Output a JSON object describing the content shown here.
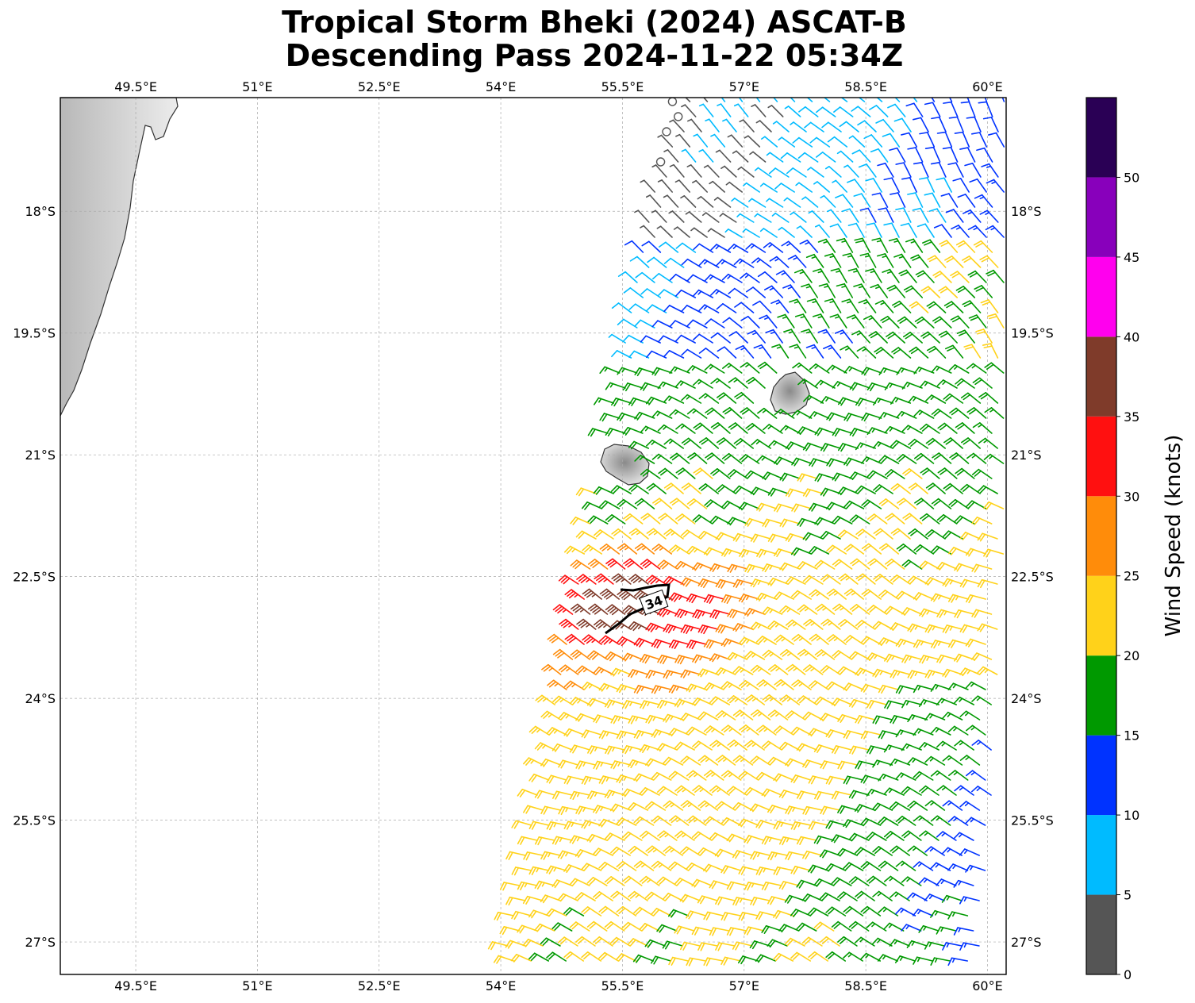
{
  "title": {
    "line1": "Tropical Storm Bheki (2024) ASCAT-B",
    "line2": "Descending Pass 2024-11-22 05:34Z"
  },
  "map": {
    "lon_range": [
      48.57,
      60.23
    ],
    "lat_range": [
      -27.4,
      -16.6
    ],
    "lon_ticks": [
      {
        "value": 49.5,
        "label": "49.5°E"
      },
      {
        "value": 51,
        "label": "51°E"
      },
      {
        "value": 52.5,
        "label": "52.5°E"
      },
      {
        "value": 54,
        "label": "54°E"
      },
      {
        "value": 55.5,
        "label": "55.5°E"
      },
      {
        "value": 57,
        "label": "57°E"
      },
      {
        "value": 58.5,
        "label": "58.5°E"
      },
      {
        "value": 60,
        "label": "60°E"
      }
    ],
    "lat_ticks": [
      {
        "value": -18,
        "label": "18°S"
      },
      {
        "value": -19.5,
        "label": "19.5°S"
      },
      {
        "value": -21,
        "label": "21°S"
      },
      {
        "value": -22.5,
        "label": "22.5°S"
      },
      {
        "value": -24,
        "label": "24°S"
      },
      {
        "value": -25.5,
        "label": "25.5°S"
      },
      {
        "value": -27,
        "label": "27°S"
      }
    ],
    "gridlines": true,
    "contour_label": "34",
    "contour_speed_knots": 34
  },
  "colorbar": {
    "label": "Wind Speed (knots)",
    "bins": [
      {
        "min": 0,
        "max": 5,
        "color": "#555555"
      },
      {
        "min": 5,
        "max": 10,
        "color": "#00bbff"
      },
      {
        "min": 10,
        "max": 15,
        "color": "#0033ff"
      },
      {
        "min": 15,
        "max": 20,
        "color": "#009900"
      },
      {
        "min": 20,
        "max": 25,
        "color": "#ffd21a"
      },
      {
        "min": 25,
        "max": 30,
        "color": "#ff8c0a"
      },
      {
        "min": 30,
        "max": 35,
        "color": "#ff1010"
      },
      {
        "min": 35,
        "max": 40,
        "color": "#7f3b2a"
      },
      {
        "min": 40,
        "max": 45,
        "color": "#ff00ee"
      },
      {
        "min": 45,
        "max": 50,
        "color": "#8800bb"
      },
      {
        "min": 50,
        "max": 55,
        "color": "#2a0055"
      }
    ],
    "ticks": [
      {
        "value": 0,
        "label": "0"
      },
      {
        "value": 5,
        "label": "5"
      },
      {
        "value": 10,
        "label": "10"
      },
      {
        "value": 15,
        "label": "15"
      },
      {
        "value": 20,
        "label": "20"
      },
      {
        "value": 25,
        "label": "25"
      },
      {
        "value": 30,
        "label": "30"
      },
      {
        "value": 35,
        "label": "35"
      },
      {
        "value": 40,
        "label": "40"
      },
      {
        "value": 45,
        "label": "45"
      },
      {
        "value": 50,
        "label": "50"
      }
    ]
  }
}
